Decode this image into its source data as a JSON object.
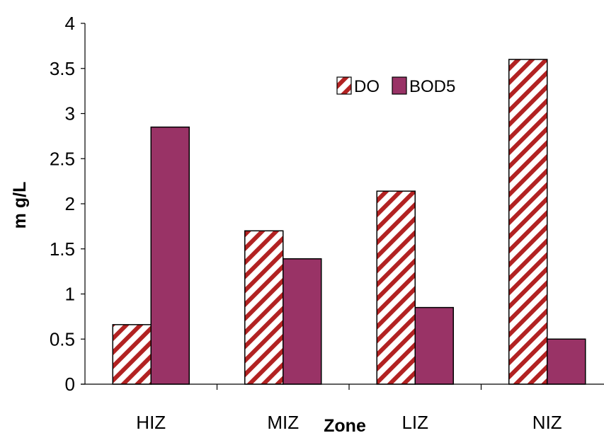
{
  "chart_data": {
    "type": "bar",
    "categories": [
      "HIZ",
      "MIZ",
      "LIZ",
      "NIZ"
    ],
    "series": [
      {
        "name": "DO",
        "values": [
          0.66,
          1.7,
          2.14,
          3.6
        ],
        "pattern": "diagonal-stripes",
        "color": "#c0504d"
      },
      {
        "name": "BOD5",
        "values": [
          2.85,
          1.39,
          0.85,
          0.5
        ],
        "pattern": "solid",
        "color": "#993366"
      }
    ],
    "title": "",
    "xlabel": "Zone",
    "ylabel": "m g/L",
    "ylim": [
      0,
      4
    ],
    "yticks": [
      {
        "value": 0,
        "label": "0"
      },
      {
        "value": 0.5,
        "label": "0.5"
      },
      {
        "value": 1,
        "label": "1"
      },
      {
        "value": 1.5,
        "label": "1.5"
      },
      {
        "value": 2,
        "label": "2"
      },
      {
        "value": 2.5,
        "label": "2.5"
      },
      {
        "value": 3,
        "label": "3"
      },
      {
        "value": 3.5,
        "label": "3.5"
      },
      {
        "value": 4,
        "label": "4"
      }
    ],
    "grid": false,
    "legend": {
      "position": "top-right-inside",
      "entries": [
        "DO",
        "BOD5"
      ]
    }
  }
}
